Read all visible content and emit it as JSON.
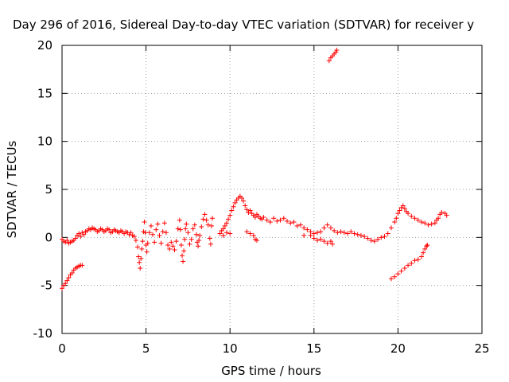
{
  "chart_data": {
    "type": "scatter",
    "title": "Day 296 of 2016, Sidereal Day-to-day VTEC variation (SDTVAR) for receiver y",
    "xlabel": "GPS time / hours",
    "ylabel": "SDTVAR / TECUs",
    "xlim": [
      0,
      25
    ],
    "ylim": [
      -10,
      20
    ],
    "xticks": [
      0,
      5,
      10,
      15,
      20,
      25
    ],
    "yticks": [
      -10,
      -5,
      0,
      5,
      10,
      15,
      20
    ],
    "grid": true,
    "marker": "+",
    "color": "#ff0000",
    "series": [
      {
        "name": "SDTVAR",
        "points": [
          [
            0.0,
            -0.2
          ],
          [
            0.1,
            -0.4
          ],
          [
            0.2,
            -0.5
          ],
          [
            0.3,
            -0.3
          ],
          [
            0.4,
            -0.6
          ],
          [
            0.5,
            -0.5
          ],
          [
            0.6,
            -0.4
          ],
          [
            0.7,
            -0.3
          ],
          [
            0.8,
            -0.1
          ],
          [
            0.9,
            0.2
          ],
          [
            1.0,
            0.4
          ],
          [
            1.1,
            0.1
          ],
          [
            1.2,
            0.5
          ],
          [
            1.3,
            0.3
          ],
          [
            1.4,
            0.6
          ],
          [
            1.5,
            0.7
          ],
          [
            1.6,
            0.9
          ],
          [
            1.7,
            0.8
          ],
          [
            1.8,
            1.0
          ],
          [
            1.9,
            0.9
          ],
          [
            2.0,
            0.8
          ],
          [
            2.1,
            0.6
          ],
          [
            2.2,
            0.7
          ],
          [
            2.3,
            0.9
          ],
          [
            2.4,
            0.8
          ],
          [
            2.5,
            0.6
          ],
          [
            2.6,
            0.7
          ],
          [
            2.7,
            0.9
          ],
          [
            2.8,
            0.8
          ],
          [
            2.9,
            0.5
          ],
          [
            3.0,
            0.6
          ],
          [
            3.1,
            0.8
          ],
          [
            3.2,
            0.7
          ],
          [
            3.3,
            0.6
          ],
          [
            3.4,
            0.5
          ],
          [
            3.5,
            0.7
          ],
          [
            3.6,
            0.6
          ],
          [
            3.7,
            0.4
          ],
          [
            3.8,
            0.6
          ],
          [
            3.9,
            0.5
          ],
          [
            4.0,
            0.3
          ],
          [
            4.1,
            0.5
          ],
          [
            4.2,
            0.2
          ],
          [
            4.3,
            0.1
          ],
          [
            4.4,
            -0.3
          ],
          [
            4.5,
            -1.0
          ],
          [
            4.55,
            -2.0
          ],
          [
            4.6,
            -2.6
          ],
          [
            4.65,
            -3.2
          ],
          [
            4.7,
            -2.2
          ],
          [
            4.75,
            -1.2
          ],
          [
            4.8,
            -0.4
          ],
          [
            4.85,
            0.6
          ],
          [
            4.9,
            1.6
          ],
          [
            4.95,
            0.5
          ],
          [
            5.0,
            -0.8
          ],
          [
            5.05,
            -1.5
          ],
          [
            5.1,
            -0.6
          ],
          [
            5.2,
            0.5
          ],
          [
            5.3,
            1.2
          ],
          [
            5.4,
            0.3
          ],
          [
            5.5,
            -0.5
          ],
          [
            5.6,
            0.8
          ],
          [
            5.7,
            1.4
          ],
          [
            5.8,
            0.2
          ],
          [
            5.9,
            -0.6
          ],
          [
            6.0,
            0.6
          ],
          [
            6.1,
            1.5
          ],
          [
            6.2,
            0.5
          ],
          [
            6.3,
            -0.8
          ],
          [
            6.4,
            -1.2
          ],
          [
            6.5,
            -0.5
          ],
          [
            6.6,
            -0.9
          ],
          [
            6.7,
            -1.3
          ],
          [
            6.8,
            -0.4
          ],
          [
            6.9,
            0.9
          ],
          [
            7.0,
            1.8
          ],
          [
            7.05,
            0.8
          ],
          [
            7.1,
            -0.8
          ],
          [
            7.15,
            -1.9
          ],
          [
            7.2,
            -2.5
          ],
          [
            7.25,
            -1.4
          ],
          [
            7.3,
            -0.2
          ],
          [
            7.35,
            0.9
          ],
          [
            7.4,
            1.4
          ],
          [
            7.5,
            0.5
          ],
          [
            7.6,
            -0.7
          ],
          [
            7.7,
            -0.2
          ],
          [
            7.8,
            0.9
          ],
          [
            7.9,
            1.3
          ],
          [
            8.0,
            0.3
          ],
          [
            8.05,
            -0.5
          ],
          [
            8.1,
            -0.9
          ],
          [
            8.15,
            -0.3
          ],
          [
            8.2,
            0.2
          ],
          [
            8.3,
            1.1
          ],
          [
            8.4,
            1.9
          ],
          [
            8.5,
            2.4
          ],
          [
            8.6,
            1.8
          ],
          [
            8.7,
            1.3
          ],
          [
            8.8,
            -0.1
          ],
          [
            8.85,
            -0.7
          ],
          [
            8.9,
            1.2
          ],
          [
            8.95,
            2.0
          ],
          [
            9.5,
            0.7
          ],
          [
            9.6,
            0.9
          ],
          [
            9.7,
            1.2
          ],
          [
            9.8,
            1.5
          ],
          [
            9.9,
            1.9
          ],
          [
            10.0,
            2.3
          ],
          [
            10.1,
            2.8
          ],
          [
            10.2,
            3.2
          ],
          [
            10.3,
            3.6
          ],
          [
            10.4,
            3.9
          ],
          [
            10.5,
            4.1
          ],
          [
            10.6,
            4.3
          ],
          [
            10.7,
            4.1
          ],
          [
            10.8,
            3.8
          ],
          [
            10.9,
            3.3
          ],
          [
            11.0,
            2.9
          ],
          [
            11.1,
            2.6
          ],
          [
            11.2,
            2.8
          ],
          [
            11.3,
            2.5
          ],
          [
            11.4,
            2.3
          ],
          [
            11.5,
            2.1
          ],
          [
            11.6,
            2.4
          ],
          [
            11.7,
            2.2
          ],
          [
            11.8,
            2.0
          ],
          [
            11.9,
            1.9
          ],
          [
            12.0,
            2.1
          ],
          [
            12.2,
            1.8
          ],
          [
            12.4,
            1.6
          ],
          [
            12.6,
            2.0
          ],
          [
            12.8,
            1.7
          ],
          [
            13.0,
            1.8
          ],
          [
            13.2,
            2.0
          ],
          [
            13.4,
            1.7
          ],
          [
            13.6,
            1.5
          ],
          [
            13.8,
            1.6
          ],
          [
            14.0,
            1.2
          ],
          [
            14.2,
            1.3
          ],
          [
            14.4,
            1.0
          ],
          [
            14.6,
            0.8
          ],
          [
            14.8,
            0.6
          ],
          [
            15.0,
            0.4
          ],
          [
            15.2,
            0.5
          ],
          [
            15.4,
            0.6
          ],
          [
            15.6,
            1.0
          ],
          [
            15.8,
            1.3
          ],
          [
            16.0,
            1.0
          ],
          [
            16.2,
            0.7
          ],
          [
            16.4,
            0.5
          ],
          [
            16.6,
            0.6
          ],
          [
            16.8,
            0.5
          ],
          [
            17.0,
            0.4
          ],
          [
            17.2,
            0.6
          ],
          [
            17.4,
            0.4
          ],
          [
            17.6,
            0.3
          ],
          [
            17.8,
            0.2
          ],
          [
            18.0,
            0.1
          ],
          [
            18.2,
            -0.1
          ],
          [
            18.4,
            -0.3
          ],
          [
            18.6,
            -0.4
          ],
          [
            18.8,
            -0.2
          ],
          [
            19.0,
            0.0
          ],
          [
            19.2,
            0.1
          ],
          [
            19.4,
            0.4
          ],
          [
            19.6,
            1.0
          ],
          [
            19.8,
            1.6
          ],
          [
            19.9,
            2.0
          ],
          [
            20.0,
            2.5
          ],
          [
            20.1,
            2.8
          ],
          [
            20.2,
            3.1
          ],
          [
            20.3,
            3.3
          ],
          [
            20.4,
            3.0
          ],
          [
            20.5,
            2.7
          ],
          [
            20.6,
            2.5
          ],
          [
            20.8,
            2.2
          ],
          [
            21.0,
            2.0
          ],
          [
            21.2,
            1.8
          ],
          [
            21.4,
            1.6
          ],
          [
            21.6,
            1.5
          ],
          [
            21.8,
            1.3
          ],
          [
            22.0,
            1.4
          ],
          [
            22.2,
            1.5
          ],
          [
            22.3,
            1.8
          ],
          [
            22.4,
            2.0
          ],
          [
            22.5,
            2.4
          ],
          [
            22.6,
            2.6
          ],
          [
            22.8,
            2.5
          ],
          [
            22.9,
            2.3
          ],
          [
            0.0,
            -5.3
          ],
          [
            0.1,
            -5.0
          ],
          [
            0.2,
            -4.8
          ],
          [
            0.3,
            -4.5
          ],
          [
            0.4,
            -4.2
          ],
          [
            0.5,
            -3.9
          ],
          [
            0.6,
            -3.7
          ],
          [
            0.7,
            -3.4
          ],
          [
            0.8,
            -3.2
          ],
          [
            0.9,
            -3.1
          ],
          [
            1.0,
            -3.0
          ],
          [
            1.1,
            -2.9
          ],
          [
            1.2,
            -2.9
          ],
          [
            15.4,
            -0.2
          ],
          [
            15.6,
            -0.4
          ],
          [
            15.8,
            -0.6
          ],
          [
            16.0,
            -0.4
          ],
          [
            16.1,
            -0.7
          ],
          [
            11.0,
            0.6
          ],
          [
            11.2,
            0.4
          ],
          [
            11.4,
            0.2
          ],
          [
            11.5,
            -0.2
          ],
          [
            11.6,
            -0.3
          ],
          [
            9.6,
            0.2
          ],
          [
            9.8,
            0.5
          ],
          [
            10.0,
            0.4
          ],
          [
            9.4,
            0.4
          ],
          [
            14.4,
            0.2
          ],
          [
            14.8,
            0.2
          ],
          [
            15.0,
            -0.1
          ],
          [
            15.2,
            -0.3
          ],
          [
            19.6,
            -4.3
          ],
          [
            19.8,
            -4.1
          ],
          [
            20.0,
            -3.8
          ],
          [
            20.2,
            -3.5
          ],
          [
            20.4,
            -3.2
          ],
          [
            20.6,
            -2.9
          ],
          [
            20.8,
            -2.7
          ],
          [
            21.0,
            -2.4
          ],
          [
            21.2,
            -2.3
          ],
          [
            21.4,
            -2.0
          ],
          [
            21.5,
            -1.6
          ],
          [
            21.6,
            -1.2
          ],
          [
            21.7,
            -0.9
          ],
          [
            21.75,
            -0.8
          ],
          [
            15.9,
            18.4
          ],
          [
            16.0,
            18.7
          ],
          [
            16.1,
            18.9
          ],
          [
            16.2,
            19.1
          ],
          [
            16.3,
            19.3
          ],
          [
            16.35,
            19.5
          ]
        ]
      }
    ]
  }
}
